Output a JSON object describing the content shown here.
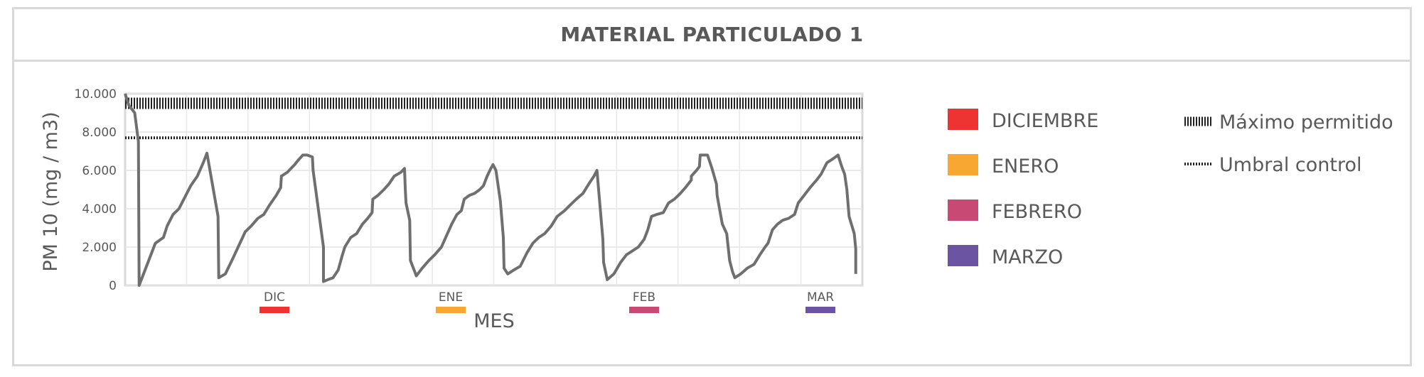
{
  "chart_data": {
    "type": "line",
    "title": "MATERIAL PARTICULADO 1",
    "xlabel": "MES",
    "ylabel": "PM 10 (mg / m3)",
    "ylim": [
      0,
      10000
    ],
    "yticks": [
      0,
      2000,
      4000,
      6000,
      8000,
      10000
    ],
    "ytick_labels": [
      "0",
      "2.000",
      "4.000",
      "6.000",
      "8.000",
      "10.000"
    ],
    "grid": true,
    "legend_position": "right",
    "month_markers": [
      {
        "label": "DIC",
        "color": "#ee3333"
      },
      {
        "label": "ENE",
        "color": "#f9a733"
      },
      {
        "label": "FEB",
        "color": "#c84a74"
      },
      {
        "label": "MAR",
        "color": "#6b55a3"
      }
    ],
    "categories_legend": [
      {
        "label": "DICIEMBRE",
        "color": "#ee3333"
      },
      {
        "label": "ENERO",
        "color": "#f9a733"
      },
      {
        "label": "FEBRERO",
        "color": "#c84a74"
      },
      {
        "label": "MARZO",
        "color": "#6b55a3"
      }
    ],
    "line_legend": [
      {
        "label": "Máximo permitido",
        "style": "thick-dotted"
      },
      {
        "label": "Umbral control",
        "style": "dotted"
      }
    ],
    "thresholds": {
      "maximo_permitido": 9500,
      "umbral_control": 7700
    },
    "series": [
      {
        "values": [
          [
            0,
            10000
          ],
          [
            0.5,
            9400
          ],
          [
            1.3,
            9000
          ],
          [
            1.8,
            7500
          ],
          [
            1.9,
            0
          ],
          [
            2.7,
            800
          ],
          [
            4.1,
            2200
          ],
          [
            5.2,
            2500
          ],
          [
            5.7,
            3100
          ],
          [
            6.5,
            3700
          ],
          [
            7.3,
            4000
          ],
          [
            8.1,
            4600
          ],
          [
            8.9,
            5200
          ],
          [
            9.8,
            5700
          ],
          [
            10.6,
            6400
          ],
          [
            11.1,
            6900
          ],
          [
            12.6,
            3600
          ],
          [
            12.7,
            400
          ],
          [
            13.6,
            600
          ],
          [
            14.6,
            1400
          ],
          [
            16.3,
            2800
          ],
          [
            17.1,
            3100
          ],
          [
            18.0,
            3500
          ],
          [
            18.8,
            3700
          ],
          [
            19.6,
            4200
          ],
          [
            20.5,
            4700
          ],
          [
            21.1,
            5100
          ],
          [
            21.2,
            5700
          ],
          [
            22.0,
            5900
          ],
          [
            22.5,
            6100
          ],
          [
            23.0,
            6300
          ],
          [
            23.4,
            6500
          ],
          [
            24.1,
            6800
          ],
          [
            24.7,
            6800
          ],
          [
            25.4,
            6700
          ],
          [
            25.5,
            6000
          ],
          [
            26.9,
            2000
          ],
          [
            26.9,
            200
          ],
          [
            27.5,
            300
          ],
          [
            28.2,
            400
          ],
          [
            28.9,
            800
          ],
          [
            29.4,
            1500
          ],
          [
            29.8,
            2000
          ],
          [
            30.6,
            2500
          ],
          [
            31.4,
            2700
          ],
          [
            32.2,
            3200
          ],
          [
            32.9,
            3500
          ],
          [
            33.5,
            3800
          ],
          [
            33.6,
            4500
          ],
          [
            34.3,
            4700
          ],
          [
            35.1,
            5000
          ],
          [
            35.8,
            5300
          ],
          [
            36.5,
            5700
          ],
          [
            37.4,
            5900
          ],
          [
            37.9,
            6100
          ],
          [
            38.0,
            5000
          ],
          [
            38.1,
            4300
          ],
          [
            38.6,
            3400
          ],
          [
            38.7,
            1300
          ],
          [
            39.5,
            500
          ],
          [
            40.3,
            900
          ],
          [
            41.2,
            1300
          ],
          [
            42.0,
            1600
          ],
          [
            42.9,
            2000
          ],
          [
            43.6,
            2600
          ],
          [
            44.3,
            3200
          ],
          [
            45.0,
            3700
          ],
          [
            45.6,
            3900
          ],
          [
            46.0,
            4500
          ],
          [
            46.7,
            4700
          ],
          [
            47.4,
            4800
          ],
          [
            48.1,
            5000
          ],
          [
            48.6,
            5200
          ],
          [
            49.1,
            5700
          ],
          [
            49.6,
            6100
          ],
          [
            49.9,
            6300
          ],
          [
            50.3,
            6000
          ],
          [
            50.9,
            4400
          ],
          [
            51.3,
            2500
          ],
          [
            51.4,
            900
          ],
          [
            51.9,
            600
          ],
          [
            52.7,
            800
          ],
          [
            53.6,
            1000
          ],
          [
            54.5,
            1700
          ],
          [
            55.3,
            2200
          ],
          [
            56.1,
            2500
          ],
          [
            56.9,
            2700
          ],
          [
            57.8,
            3100
          ],
          [
            58.6,
            3600
          ],
          [
            59.6,
            3900
          ],
          [
            60.4,
            4200
          ],
          [
            61.2,
            4500
          ],
          [
            62.1,
            4800
          ],
          [
            62.9,
            5300
          ],
          [
            63.6,
            5700
          ],
          [
            64.0,
            6000
          ],
          [
            64.8,
            2400
          ],
          [
            64.9,
            1200
          ],
          [
            65.4,
            300
          ],
          [
            66.3,
            600
          ],
          [
            67.2,
            1200
          ],
          [
            68.0,
            1600
          ],
          [
            68.8,
            1800
          ],
          [
            69.6,
            2000
          ],
          [
            70.4,
            2400
          ],
          [
            70.9,
            2900
          ],
          [
            71.4,
            3600
          ],
          [
            72.1,
            3700
          ],
          [
            73.0,
            3800
          ],
          [
            73.7,
            4300
          ],
          [
            74.5,
            4500
          ],
          [
            75.3,
            4800
          ],
          [
            76.0,
            5100
          ],
          [
            76.8,
            5500
          ],
          [
            76.8,
            5700
          ],
          [
            77.5,
            6000
          ],
          [
            77.9,
            6200
          ],
          [
            78.0,
            6800
          ],
          [
            78.5,
            6800
          ],
          [
            79.0,
            6800
          ],
          [
            79.6,
            6100
          ],
          [
            80.2,
            5300
          ],
          [
            80.3,
            4700
          ],
          [
            81.0,
            3200
          ],
          [
            81.6,
            2700
          ],
          [
            82.0,
            1300
          ],
          [
            82.4,
            700
          ],
          [
            82.7,
            400
          ],
          [
            83.5,
            600
          ],
          [
            84.4,
            900
          ],
          [
            85.3,
            1100
          ],
          [
            86.1,
            1600
          ],
          [
            86.8,
            2000
          ],
          [
            87.2,
            2200
          ],
          [
            87.8,
            2900
          ],
          [
            88.5,
            3200
          ],
          [
            89.2,
            3400
          ],
          [
            90.0,
            3500
          ],
          [
            90.8,
            3700
          ],
          [
            91.3,
            4300
          ],
          [
            92.1,
            4700
          ],
          [
            92.9,
            5100
          ],
          [
            93.8,
            5500
          ],
          [
            94.4,
            5800
          ],
          [
            95.2,
            6400
          ],
          [
            96.0,
            6600
          ],
          [
            96.7,
            6800
          ],
          [
            97.2,
            6200
          ],
          [
            97.6,
            5800
          ],
          [
            97.9,
            5000
          ],
          [
            98.2,
            3600
          ],
          [
            98.9,
            2700
          ],
          [
            99.1,
            1900
          ],
          [
            99.1,
            600
          ]
        ]
      }
    ]
  }
}
